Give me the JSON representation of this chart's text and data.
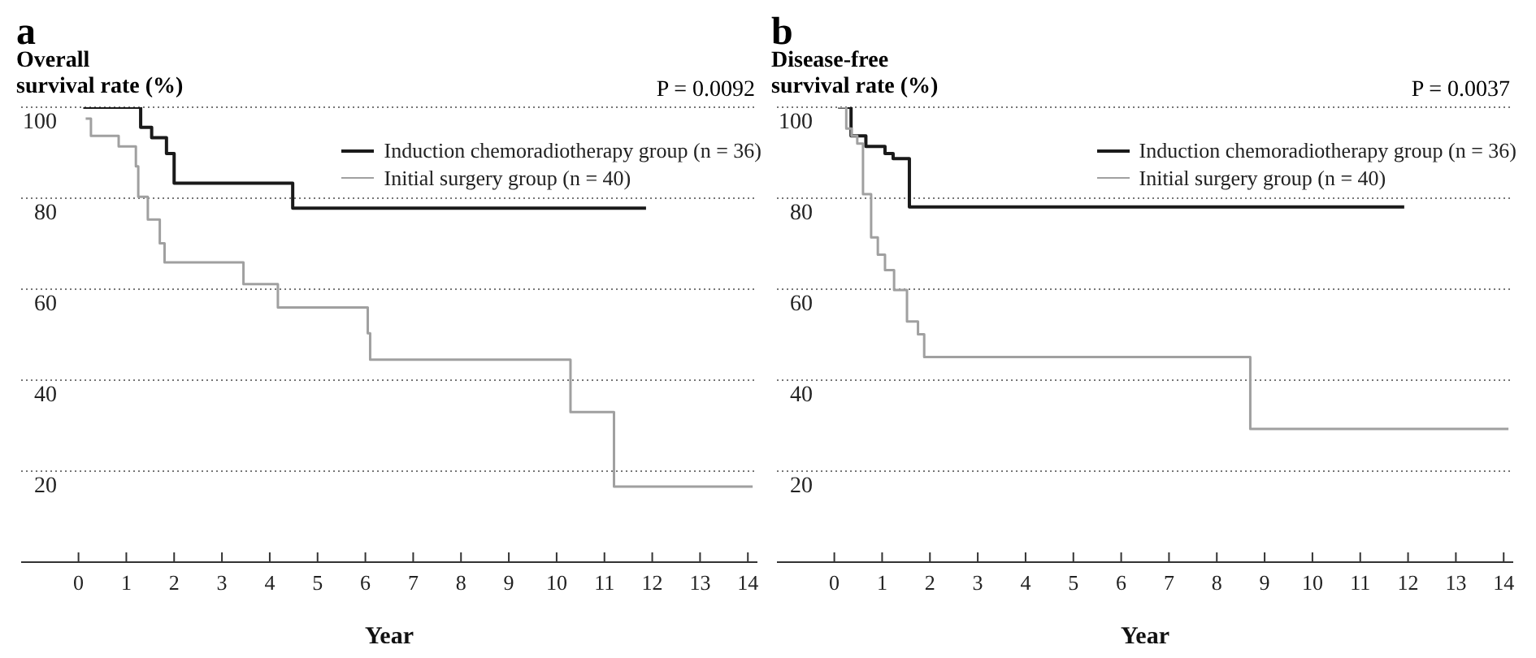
{
  "chart_data": [
    {
      "type": "step",
      "title": "a",
      "ylabel": "Overall\nsurvival rate (%)",
      "xlabel": "Year",
      "annotations": [
        "P = 0.0092"
      ],
      "xlim": [
        -1.2,
        14.2
      ],
      "xticks": [
        0,
        1,
        2,
        3,
        4,
        5,
        6,
        7,
        8,
        9,
        10,
        11,
        12,
        13,
        14
      ],
      "ylim": [
        0,
        100
      ],
      "yticks": [
        20,
        40,
        60,
        80,
        100
      ],
      "grid": "y",
      "legend": "top right",
      "series": [
        {
          "name": "Induction chemoradiotherapy group (n = 36)",
          "color": "#1a1a1a",
          "x": [
            0.1,
            1.3,
            1.53,
            1.84,
            2.0,
            4.48,
            11.87
          ],
          "values": [
            100,
            95.6,
            93.3,
            89.8,
            83.3,
            77.8,
            77.8
          ]
        },
        {
          "name": "Initial surgery group (n = 40)",
          "color": "#a0a0a0",
          "x": [
            0.15,
            0.26,
            0.84,
            1.2,
            1.25,
            1.45,
            1.7,
            1.8,
            3.45,
            4.17,
            6.05,
            6.1,
            10.29,
            11.2,
            14.1
          ],
          "values": [
            97.5,
            93.7,
            91.4,
            87,
            80.3,
            75.3,
            70.1,
            65.9,
            61.1,
            56,
            50.3,
            44.5,
            33,
            16.6,
            16.6
          ]
        }
      ]
    },
    {
      "type": "step",
      "title": "b",
      "ylabel": "Disease-free\nsurvival rate (%)",
      "xlabel": "Year",
      "annotations": [
        "P = 0.0037"
      ],
      "xlim": [
        -1.2,
        14.2
      ],
      "xticks": [
        0,
        1,
        2,
        3,
        4,
        5,
        6,
        7,
        8,
        9,
        10,
        11,
        12,
        13,
        14
      ],
      "ylim": [
        0,
        100
      ],
      "yticks": [
        20,
        40,
        60,
        80,
        100
      ],
      "grid": "y",
      "legend": "top right",
      "series": [
        {
          "name": "Induction chemoradiotherapy group (n = 36)",
          "color": "#1a1a1a",
          "x": [
            0.08,
            0.35,
            0.66,
            1.06,
            1.23,
            1.57,
            11.92
          ],
          "values": [
            100,
            93.7,
            91.4,
            89.8,
            88.7,
            78.1,
            78.1
          ]
        },
        {
          "name": "Initial surgery group (n = 40)",
          "color": "#a0a0a0",
          "x": [
            0.08,
            0.25,
            0.36,
            0.48,
            0.6,
            0.77,
            0.91,
            1.06,
            1.25,
            1.52,
            1.75,
            1.88,
            8.7,
            14.1
          ],
          "values": [
            100,
            95.3,
            93.7,
            92,
            80.9,
            71.4,
            67.6,
            64.2,
            59.8,
            52.9,
            50.1,
            45.1,
            29.3,
            29.3
          ]
        }
      ]
    }
  ]
}
